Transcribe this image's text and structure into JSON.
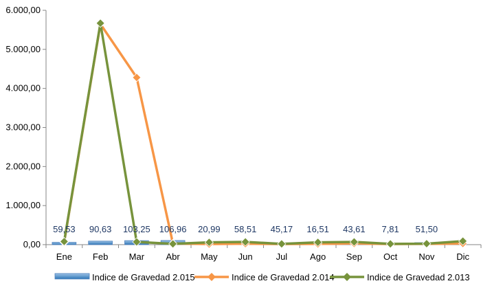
{
  "chart_data": {
    "type": "bar",
    "categories": [
      "Ene",
      "Feb",
      "Mar",
      "Abr",
      "May",
      "Jun",
      "Jul",
      "Ago",
      "Sep",
      "Oct",
      "Nov",
      "Dic"
    ],
    "y_tick_labels": [
      "0,00",
      "1.000,00",
      "2.000,00",
      "3.000,00",
      "4.000,00",
      "5.000,00",
      "6.000,00"
    ],
    "ylim": [
      0,
      6000
    ],
    "series": [
      {
        "name": "Indice de Gravedad 2.015",
        "kind": "bar",
        "color": "#4f81bd",
        "values": [
          59.53,
          90.63,
          103.25,
          106.96,
          20.99,
          58.51,
          45.17,
          16.51,
          43.61,
          7.81,
          51.5,
          null
        ],
        "labels": [
          "59,53",
          "90,63",
          "103,25",
          "106,96",
          "20,99",
          "58,51",
          "45,17",
          "16,51",
          "43,61",
          "7,81",
          "51,50",
          ""
        ]
      },
      {
        "name": "Indice de Gravedad 2.014",
        "kind": "line",
        "color": "#f79646",
        "values": [
          60,
          5650,
          4280,
          30,
          15,
          25,
          15,
          20,
          30,
          15,
          20,
          30
        ]
      },
      {
        "name": "Indice de Gravedad  2.013",
        "kind": "line",
        "color": "#77933c",
        "values": [
          80,
          5670,
          70,
          20,
          60,
          70,
          20,
          60,
          70,
          20,
          25,
          90
        ]
      }
    ],
    "grid": false,
    "legend": "bottom"
  }
}
